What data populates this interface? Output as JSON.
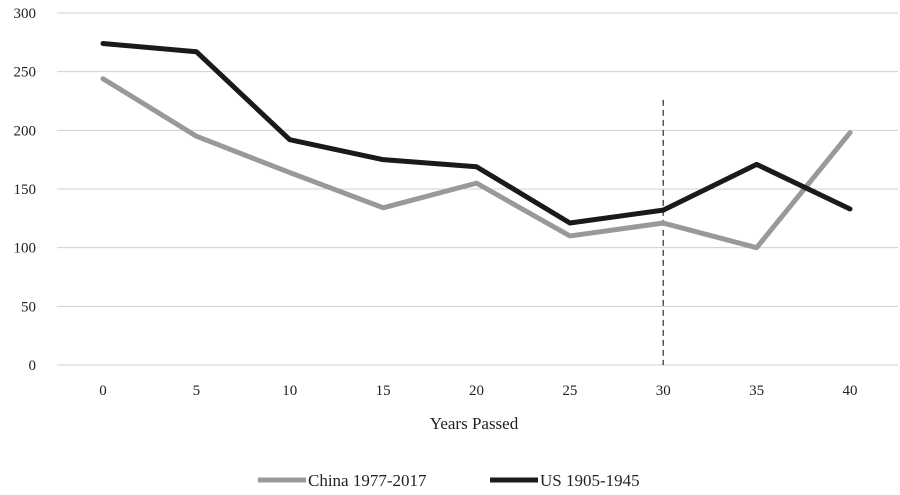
{
  "chart_data": {
    "type": "line",
    "title": "",
    "xlabel": "Years Passed",
    "ylabel": "",
    "x": [
      0,
      5,
      10,
      15,
      20,
      25,
      30,
      35,
      40
    ],
    "ylim": [
      0,
      300
    ],
    "yticks": [
      0,
      50,
      100,
      150,
      200,
      250,
      300
    ],
    "grid": true,
    "legend_position": "bottom",
    "vertical_marker": {
      "x": 30,
      "style": "dashed"
    },
    "series": [
      {
        "name": "China 1977-2017",
        "color": "#999999",
        "values": [
          244,
          195,
          164,
          134,
          155,
          110,
          121,
          100,
          198
        ]
      },
      {
        "name": "US 1905-1945",
        "color": "#1a1a1a",
        "values": [
          274,
          267,
          192,
          175,
          169,
          121,
          132,
          171,
          133
        ]
      }
    ]
  }
}
